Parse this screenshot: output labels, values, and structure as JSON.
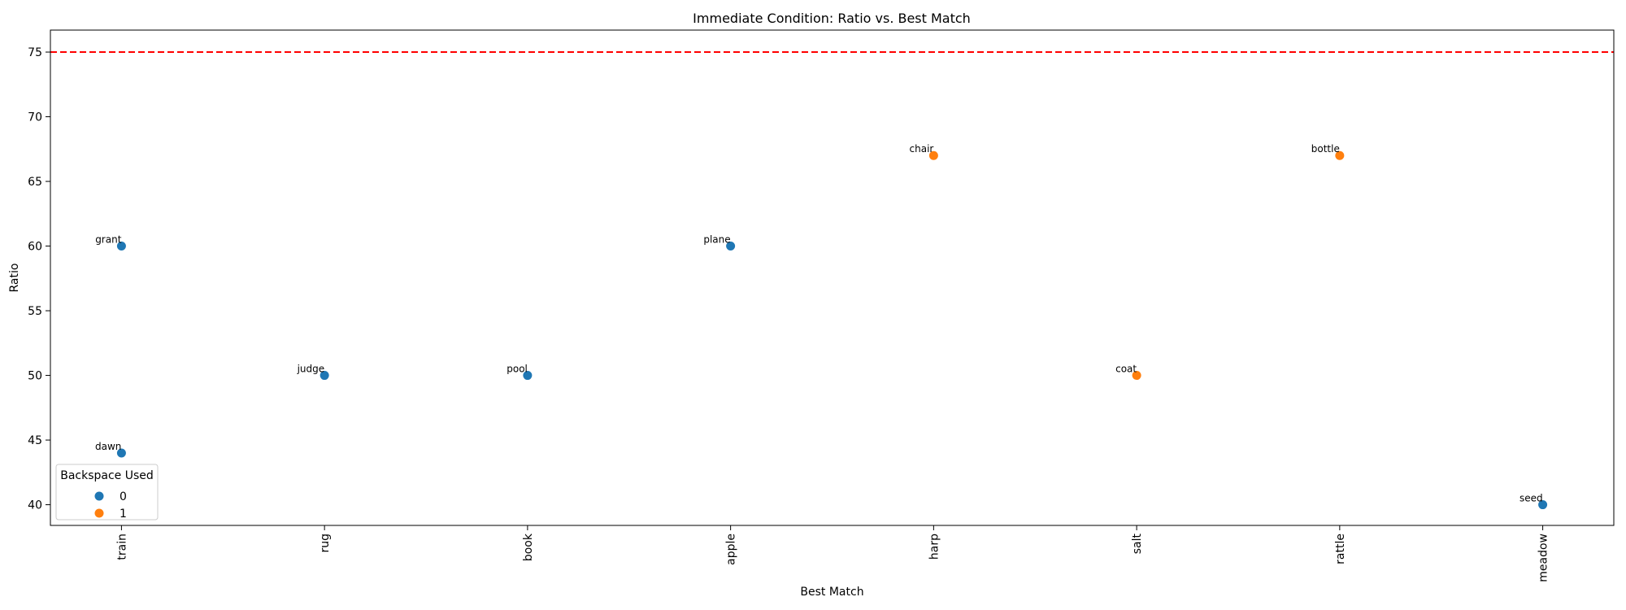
{
  "chart_data": {
    "type": "scatter",
    "title": "Immediate Condition: Ratio vs. Best Match",
    "xlabel": "Best Match",
    "ylabel": "Ratio",
    "categories": [
      "train",
      "rug",
      "book",
      "apple",
      "harp",
      "salt",
      "rattle",
      "meadow"
    ],
    "ylim": [
      38.4,
      76.7
    ],
    "yticks": [
      40,
      45,
      50,
      55,
      60,
      65,
      70,
      75
    ],
    "grid": false,
    "reference_line": {
      "y": 75,
      "color": "#ff0000",
      "style": "dashed"
    },
    "legend": {
      "title": "Backspace Used",
      "placement": "lower-left",
      "entries": [
        {
          "label": "0",
          "color": "#1f77b4"
        },
        {
          "label": "1",
          "color": "#ff7f0e"
        }
      ]
    },
    "points": [
      {
        "x": "train",
        "y": 60,
        "label": "grant",
        "backspace": 0
      },
      {
        "x": "train",
        "y": 44,
        "label": "dawn",
        "backspace": 0
      },
      {
        "x": "rug",
        "y": 50,
        "label": "judge",
        "backspace": 0
      },
      {
        "x": "book",
        "y": 50,
        "label": "pool",
        "backspace": 0
      },
      {
        "x": "apple",
        "y": 60,
        "label": "plane",
        "backspace": 0
      },
      {
        "x": "harp",
        "y": 67,
        "label": "chair",
        "backspace": 1
      },
      {
        "x": "salt",
        "y": 50,
        "label": "coat",
        "backspace": 1
      },
      {
        "x": "rattle",
        "y": 67,
        "label": "bottle",
        "backspace": 1
      },
      {
        "x": "meadow",
        "y": 40,
        "label": "seed",
        "backspace": 0
      }
    ]
  }
}
